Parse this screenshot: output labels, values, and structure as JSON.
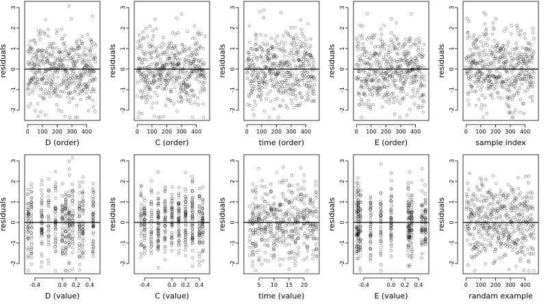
{
  "chart_data": [
    {
      "type": "scatter",
      "xlabel": "D (order)",
      "ylabel": "residuals",
      "x_kind": "index",
      "xlim": [
        -20,
        490
      ],
      "xticks": [
        0,
        100,
        200,
        300,
        400
      ],
      "ylim": [
        -2.5,
        3.3
      ],
      "yticks": [
        -2,
        -1,
        0,
        1,
        2,
        3
      ],
      "hline": 0
    },
    {
      "type": "scatter",
      "xlabel": "C (order)",
      "ylabel": "residuals",
      "x_kind": "index",
      "xlim": [
        -20,
        490
      ],
      "xticks": [
        0,
        100,
        200,
        300,
        400
      ],
      "ylim": [
        -2.5,
        3.3
      ],
      "yticks": [
        -2,
        -1,
        0,
        1,
        2,
        3
      ],
      "hline": 0
    },
    {
      "type": "scatter",
      "xlabel": "time (order)",
      "ylabel": "residuals",
      "x_kind": "index",
      "xlim": [
        -20,
        490
      ],
      "xticks": [
        0,
        100,
        200,
        300,
        400
      ],
      "ylim": [
        -2.5,
        3.3
      ],
      "yticks": [
        -2,
        -1,
        0,
        1,
        2,
        3
      ],
      "hline": 0
    },
    {
      "type": "scatter",
      "xlabel": "E (order)",
      "ylabel": "residuals",
      "x_kind": "index",
      "xlim": [
        -20,
        490
      ],
      "xticks": [
        0,
        100,
        200,
        300,
        400
      ],
      "ylim": [
        -2.5,
        3.3
      ],
      "yticks": [
        -2,
        -1,
        0,
        1,
        2,
        3
      ],
      "hline": 0
    },
    {
      "type": "scatter",
      "xlabel": "sample index",
      "ylabel": "residuals",
      "x_kind": "index",
      "xlim": [
        -20,
        490
      ],
      "xticks": [
        0,
        100,
        200,
        300,
        400
      ],
      "ylim": [
        -2.5,
        3.3
      ],
      "yticks": [
        -2,
        -1,
        0,
        1,
        2,
        3
      ],
      "hline": 0
    },
    {
      "type": "scatter",
      "xlabel": "D (value)",
      "ylabel": "residuals",
      "x_kind": "value",
      "xlim": [
        -0.55,
        0.55
      ],
      "xticks": [
        -0.4,
        0.0,
        0.2,
        0.4
      ],
      "xtick_labels": [
        "-0.4",
        "0.0",
        "0.2",
        "0.4"
      ],
      "ylim": [
        -2.5,
        3.3
      ],
      "yticks": [
        -2,
        -1,
        0,
        1,
        2,
        3
      ],
      "hline": 0
    },
    {
      "type": "scatter",
      "xlabel": "C (value)",
      "ylabel": "residuals",
      "x_kind": "value",
      "xlim": [
        -0.55,
        0.55
      ],
      "xticks": [
        -0.4,
        0.0,
        0.2,
        0.4
      ],
      "xtick_labels": [
        "-0.4",
        "0.0",
        "0.2",
        "0.4"
      ],
      "ylim": [
        -2.5,
        3.3
      ],
      "yticks": [
        -2,
        -1,
        0,
        1,
        2,
        3
      ],
      "hline": 0
    },
    {
      "type": "scatter",
      "xlabel": "time (value)",
      "ylabel": "residuals",
      "x_kind": "value",
      "xlim": [
        0,
        25
      ],
      "xticks": [
        5,
        10,
        15,
        20
      ],
      "xtick_labels": [
        "5",
        "10",
        "15",
        "20"
      ],
      "ylim": [
        -2.5,
        3.3
      ],
      "yticks": [
        -2,
        -1,
        0,
        1,
        2,
        3
      ],
      "hline": 0
    },
    {
      "type": "scatter",
      "xlabel": "E (value)",
      "ylabel": "residuals",
      "x_kind": "value",
      "xlim": [
        -0.55,
        0.55
      ],
      "xticks": [
        -0.4,
        0.0,
        0.2,
        0.4
      ],
      "xtick_labels": [
        "-0.4",
        "0.0",
        "0.2",
        "0.4"
      ],
      "ylim": [
        -2.5,
        3.3
      ],
      "yticks": [
        -2,
        -1,
        0,
        1,
        2,
        3
      ],
      "hline": 0
    },
    {
      "type": "scatter",
      "xlabel": "randam example",
      "ylabel": "residuals",
      "x_kind": "index",
      "xlim": [
        -20,
        490
      ],
      "xticks": [
        0,
        100,
        200,
        300,
        400
      ],
      "ylim": [
        -2.5,
        3.3
      ],
      "yticks": [
        -2,
        -1,
        0,
        1,
        2,
        3
      ],
      "hline": 0
    }
  ]
}
